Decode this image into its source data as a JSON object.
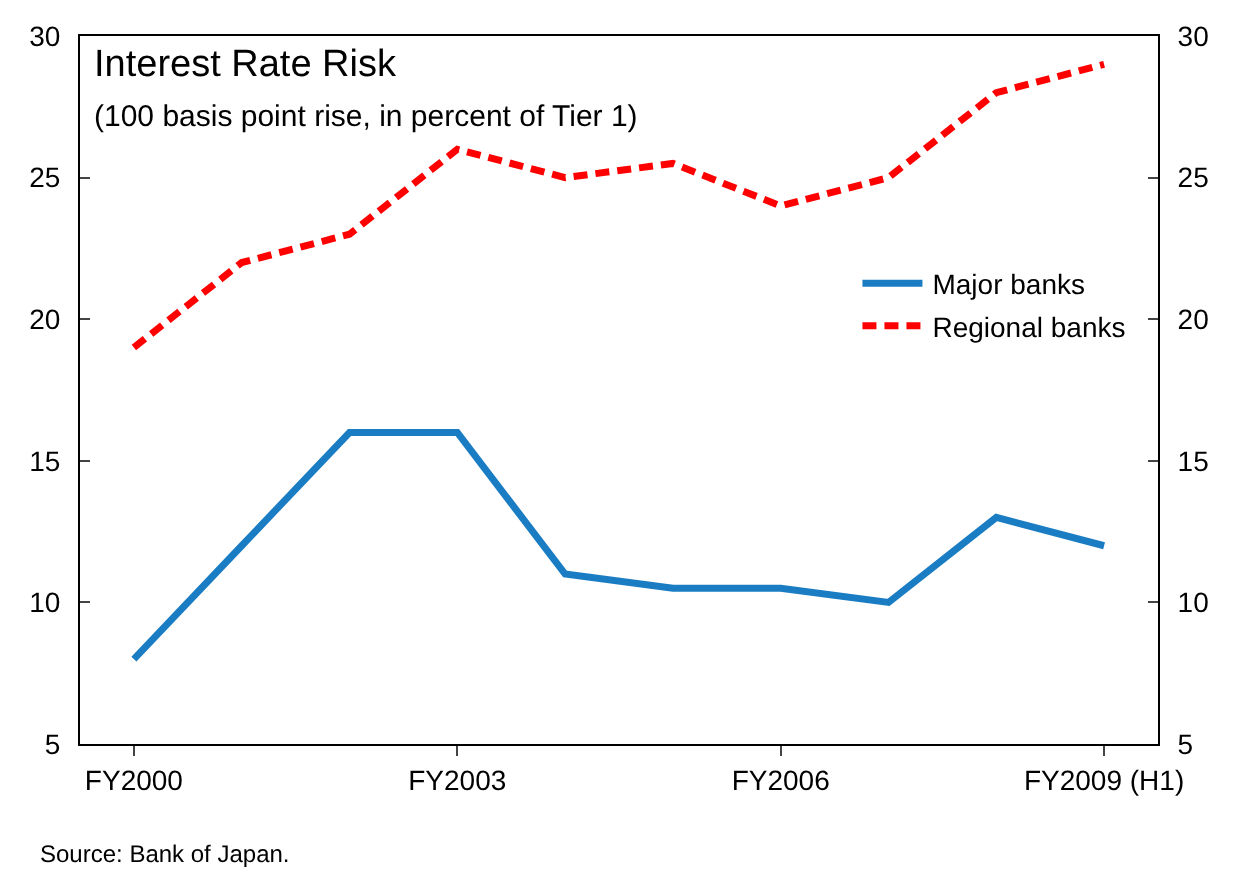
{
  "chart_data": {
    "type": "line",
    "title": "Interest Rate Risk",
    "subtitle": "(100 basis point rise, in percent of Tier 1)",
    "categories": [
      "FY2000",
      null,
      null,
      "FY2003",
      null,
      null,
      "FY2006",
      null,
      null,
      "FY2009 (H1)"
    ],
    "series": [
      {
        "name": "Major banks",
        "color": "#1a7dc4",
        "line_style": "solid",
        "values": [
          8,
          12,
          16,
          16,
          11,
          10.5,
          10.5,
          10,
          13,
          12
        ]
      },
      {
        "name": "Regional banks",
        "color": "#ff0000",
        "line_style": "dashed",
        "values": [
          19,
          22,
          23,
          26,
          25,
          25.5,
          24,
          25,
          28,
          29
        ]
      }
    ],
    "ylim": [
      5,
      30
    ],
    "yticks": [
      5,
      10,
      15,
      20,
      25,
      30
    ],
    "y2lim": [
      5,
      30
    ],
    "y2ticks": [
      5,
      10,
      15,
      20,
      25,
      30
    ],
    "legend": "right",
    "marker": "none",
    "annotations": [
      "Source: Bank of Japan."
    ]
  }
}
